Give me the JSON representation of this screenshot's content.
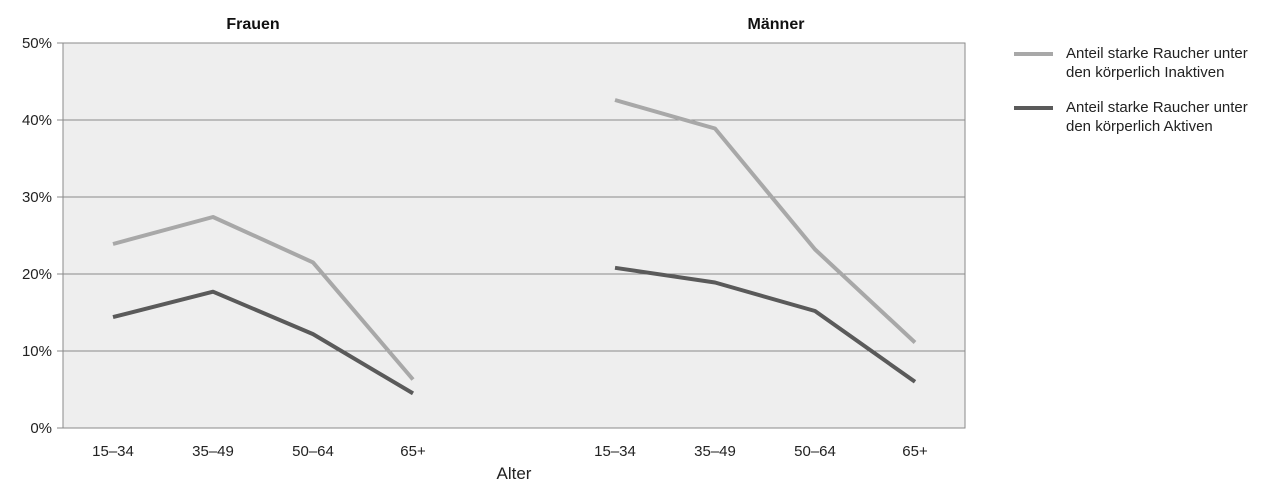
{
  "chart_data": {
    "type": "line",
    "groups": [
      "Frauen",
      "Männer"
    ],
    "categories": [
      "15–34",
      "35–49",
      "50–64",
      "65+"
    ],
    "xlabel": "Alter",
    "ylim": [
      0,
      50
    ],
    "yticks": [
      "0%",
      "10%",
      "20%",
      "30%",
      "40%",
      "50%"
    ],
    "ytick_values": [
      0,
      10,
      20,
      30,
      40,
      50
    ],
    "grid": true,
    "legend_position": "right",
    "series": [
      {
        "name": "Anteil starke Raucher unter den körperlich Inaktiven",
        "name_lines": [
          "Anteil starke Raucher unter",
          "den körperlich Inaktiven"
        ],
        "color": "#a8a8a8",
        "values": {
          "Frauen": [
            23.9,
            27.4,
            21.5,
            6.3
          ],
          "Männer": [
            42.6,
            38.9,
            23.2,
            11.1
          ]
        }
      },
      {
        "name": "Anteil starke Raucher unter den körperlich Aktiven",
        "name_lines": [
          "Anteil starke Raucher unter",
          "den körperlich Aktiven"
        ],
        "color": "#5a5a5a",
        "values": {
          "Frauen": [
            14.4,
            17.7,
            12.2,
            4.5
          ],
          "Männer": [
            20.8,
            18.9,
            15.2,
            6.0
          ]
        }
      }
    ],
    "plot_background": "#eeeeee"
  }
}
